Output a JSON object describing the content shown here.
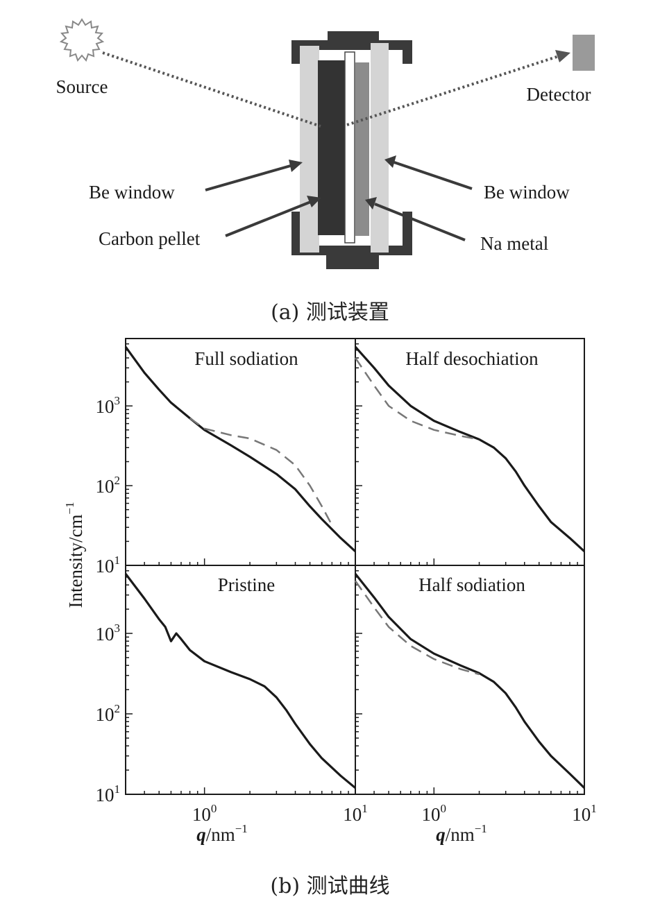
{
  "figure_a": {
    "labels": {
      "source": "Source",
      "detector": "Detector",
      "be_window_left": "Be window",
      "be_window_right": "Be window",
      "carbon_pellet": "Carbon pellet",
      "na_metal": "Na metal"
    },
    "caption": "(a) 测试装置"
  },
  "figure_b": {
    "caption": "(b) 测试曲线",
    "ylabel": "Intensity/cm",
    "ylabel_sup": "−1",
    "xlabel": "q",
    "xlabel_unit": "/nm",
    "xlabel_sup": "−1",
    "y_ticks": [
      {
        "base": "10",
        "exp": "3"
      },
      {
        "base": "10",
        "exp": "2"
      },
      {
        "base": "10",
        "exp": "1"
      }
    ],
    "x_ticks": [
      {
        "base": "10",
        "exp": "0"
      },
      {
        "base": "10",
        "exp": "1"
      }
    ],
    "colors": {
      "measured": "#1a1a1a",
      "fit": "#777777"
    }
  },
  "chart_data": [
    {
      "type": "line",
      "title": "Full sodiation",
      "log_x": true,
      "log_y": true,
      "xlim": [
        0.3,
        10
      ],
      "ylim": [
        10,
        7000
      ],
      "series": [
        {
          "style": "solid",
          "x": [
            0.3,
            0.4,
            0.5,
            0.6,
            0.8,
            1.0,
            1.5,
            2.0,
            3.0,
            4.0,
            5.0,
            6.0,
            8.0,
            10.0
          ],
          "y": [
            5500,
            2600,
            1600,
            1100,
            700,
            500,
            320,
            230,
            140,
            90,
            55,
            38,
            22,
            15
          ]
        },
        {
          "style": "dashed",
          "x": [
            0.8,
            1.0,
            1.5,
            2.0,
            3.0,
            4.0,
            5.0,
            6.0,
            7.0
          ],
          "y": [
            700,
            520,
            430,
            390,
            280,
            180,
            100,
            55,
            32
          ]
        }
      ]
    },
    {
      "type": "line",
      "title": "Half desochiation",
      "log_x": true,
      "log_y": true,
      "xlim": [
        0.3,
        10
      ],
      "ylim": [
        10,
        7000
      ],
      "series": [
        {
          "style": "solid",
          "x": [
            0.3,
            0.4,
            0.5,
            0.7,
            1.0,
            1.5,
            2.0,
            2.5,
            3.0,
            3.5,
            4.0,
            5.0,
            6.0,
            8.0,
            10.0
          ],
          "y": [
            5500,
            3000,
            1800,
            1000,
            650,
            470,
            380,
            300,
            220,
            150,
            100,
            55,
            35,
            22,
            15
          ]
        },
        {
          "style": "dashed",
          "x": [
            0.3,
            0.4,
            0.5,
            0.7,
            1.0,
            1.5,
            2.0
          ],
          "y": [
            4000,
            1800,
            1000,
            650,
            500,
            420,
            380
          ]
        }
      ]
    },
    {
      "type": "line",
      "title": "Pristine",
      "log_x": true,
      "log_y": true,
      "xlim": [
        0.3,
        10
      ],
      "ylim": [
        10,
        7000
      ],
      "series": [
        {
          "style": "solid",
          "x": [
            0.3,
            0.4,
            0.5,
            0.55,
            0.6,
            0.65,
            0.7,
            0.8,
            1.0,
            1.5,
            2.0,
            2.5,
            3.0,
            3.5,
            4.0,
            5.0,
            6.0,
            8.0,
            10.0
          ],
          "y": [
            5500,
            2700,
            1500,
            1200,
            800,
            1000,
            850,
            620,
            450,
            330,
            270,
            220,
            160,
            110,
            75,
            42,
            28,
            17,
            12
          ]
        }
      ]
    },
    {
      "type": "line",
      "title": "Half sodiation",
      "log_x": true,
      "log_y": true,
      "xlim": [
        0.3,
        10
      ],
      "ylim": [
        10,
        7000
      ],
      "series": [
        {
          "style": "solid",
          "x": [
            0.3,
            0.4,
            0.5,
            0.7,
            1.0,
            1.5,
            2.0,
            2.5,
            3.0,
            3.5,
            4.0,
            5.0,
            6.0,
            8.0,
            10.0
          ],
          "y": [
            5500,
            2800,
            1600,
            850,
            560,
            400,
            320,
            250,
            180,
            120,
            80,
            45,
            30,
            18,
            12
          ]
        },
        {
          "style": "dashed",
          "x": [
            0.3,
            0.4,
            0.5,
            0.7,
            1.0,
            1.5,
            2.0
          ],
          "y": [
            4500,
            2100,
            1200,
            700,
            480,
            360,
            310
          ]
        }
      ]
    }
  ]
}
